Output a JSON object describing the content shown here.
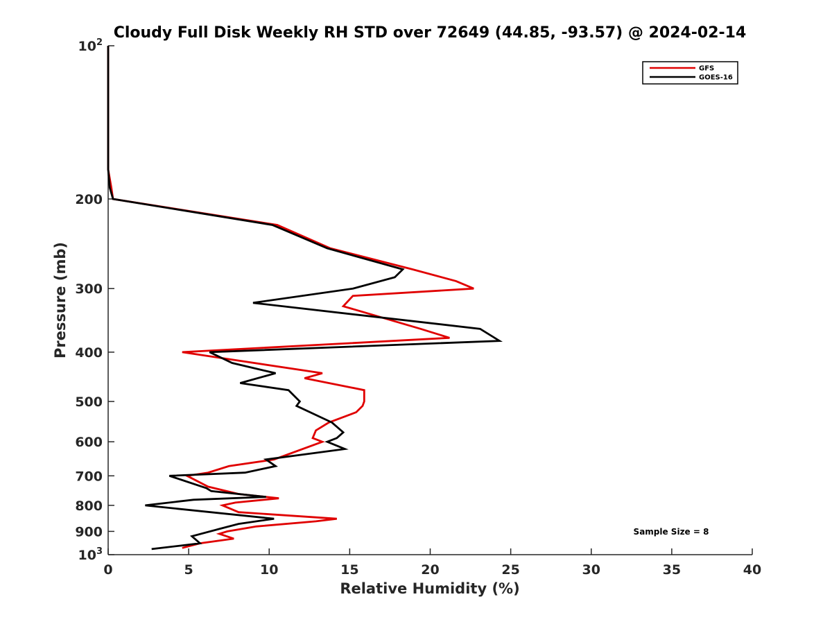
{
  "chart_data": {
    "type": "line",
    "title": "Cloudy Full Disk Weekly RH STD over 72649 (44.85, -93.57) @ 2024-02-14",
    "xlabel": "Relative Humidity (%)",
    "ylabel": "Pressure (mb)",
    "xlim": [
      0,
      40
    ],
    "ylim": [
      100,
      1000
    ],
    "y_scale": "log",
    "y_reversed": true,
    "grid": false,
    "legend_position": "top-right",
    "x_ticks": [
      0,
      5,
      10,
      15,
      20,
      25,
      30,
      35,
      40
    ],
    "x_tick_labels": [
      "0",
      "5",
      "10",
      "15",
      "20",
      "25",
      "30",
      "35",
      "40"
    ],
    "y_ticks": [
      100,
      200,
      300,
      400,
      500,
      600,
      700,
      800,
      900,
      1000
    ],
    "y_tick_labels": [
      {
        "base": "10",
        "exp": "2"
      },
      {
        "base": "200",
        "exp": ""
      },
      {
        "base": "300",
        "exp": ""
      },
      {
        "base": "400",
        "exp": ""
      },
      {
        "base": "500",
        "exp": ""
      },
      {
        "base": "600",
        "exp": ""
      },
      {
        "base": "700",
        "exp": ""
      },
      {
        "base": "800",
        "exp": ""
      },
      {
        "base": "900",
        "exp": ""
      },
      {
        "base": "10",
        "exp": "3"
      }
    ],
    "annotation": "Sample Size = 8",
    "series": [
      {
        "name": "GFS",
        "color": "#e00000",
        "points": [
          [
            0.0,
            100
          ],
          [
            0.0,
            125
          ],
          [
            0.0,
            150
          ],
          [
            0.0,
            175
          ],
          [
            0.2,
            190
          ],
          [
            0.3,
            200
          ],
          [
            10.5,
            225
          ],
          [
            13.8,
            250
          ],
          [
            18.9,
            275
          ],
          [
            21.6,
            290
          ],
          [
            22.7,
            300
          ],
          [
            15.2,
            310
          ],
          [
            14.6,
            325
          ],
          [
            19.4,
            360
          ],
          [
            21.2,
            375
          ],
          [
            4.6,
            400
          ],
          [
            13.3,
            440
          ],
          [
            12.2,
            450
          ],
          [
            15.9,
            475
          ],
          [
            15.9,
            500
          ],
          [
            15.8,
            510
          ],
          [
            15.4,
            525
          ],
          [
            13.7,
            550
          ],
          [
            12.9,
            570
          ],
          [
            12.7,
            590
          ],
          [
            13.3,
            600
          ],
          [
            10.3,
            650
          ],
          [
            7.5,
            670
          ],
          [
            6.2,
            690
          ],
          [
            4.9,
            700
          ],
          [
            6.2,
            735
          ],
          [
            8.1,
            760
          ],
          [
            10.6,
            775
          ],
          [
            7.9,
            790
          ],
          [
            7.1,
            800
          ],
          [
            8.1,
            825
          ],
          [
            14.2,
            850
          ],
          [
            12.9,
            860
          ],
          [
            9.2,
            880
          ],
          [
            7.4,
            900
          ],
          [
            6.9,
            910
          ],
          [
            7.8,
            930
          ],
          [
            5.7,
            950
          ],
          [
            4.6,
            970
          ]
        ]
      },
      {
        "name": "GOES-16",
        "color": "#000000",
        "points": [
          [
            0.0,
            100
          ],
          [
            0.0,
            125
          ],
          [
            0.0,
            150
          ],
          [
            0.0,
            175
          ],
          [
            0.1,
            190
          ],
          [
            0.3,
            200
          ],
          [
            10.2,
            225
          ],
          [
            13.6,
            250
          ],
          [
            18.3,
            275
          ],
          [
            17.8,
            285
          ],
          [
            15.2,
            300
          ],
          [
            9.0,
            320
          ],
          [
            23.1,
            360
          ],
          [
            24.3,
            380
          ],
          [
            6.3,
            400
          ],
          [
            7.7,
            420
          ],
          [
            10.4,
            440
          ],
          [
            8.2,
            460
          ],
          [
            11.2,
            475
          ],
          [
            11.9,
            500
          ],
          [
            11.7,
            510
          ],
          [
            13.9,
            550
          ],
          [
            14.6,
            575
          ],
          [
            14.2,
            590
          ],
          [
            13.6,
            600
          ],
          [
            14.7,
            620
          ],
          [
            9.8,
            650
          ],
          [
            10.4,
            670
          ],
          [
            8.5,
            690
          ],
          [
            3.8,
            700
          ],
          [
            6.1,
            740
          ],
          [
            6.4,
            750
          ],
          [
            9.8,
            770
          ],
          [
            5.3,
            780
          ],
          [
            2.3,
            800
          ],
          [
            10.3,
            850
          ],
          [
            8.1,
            870
          ],
          [
            6.9,
            890
          ],
          [
            5.2,
            920
          ],
          [
            5.7,
            950
          ],
          [
            4.5,
            960
          ],
          [
            2.7,
            975
          ]
        ]
      }
    ]
  }
}
